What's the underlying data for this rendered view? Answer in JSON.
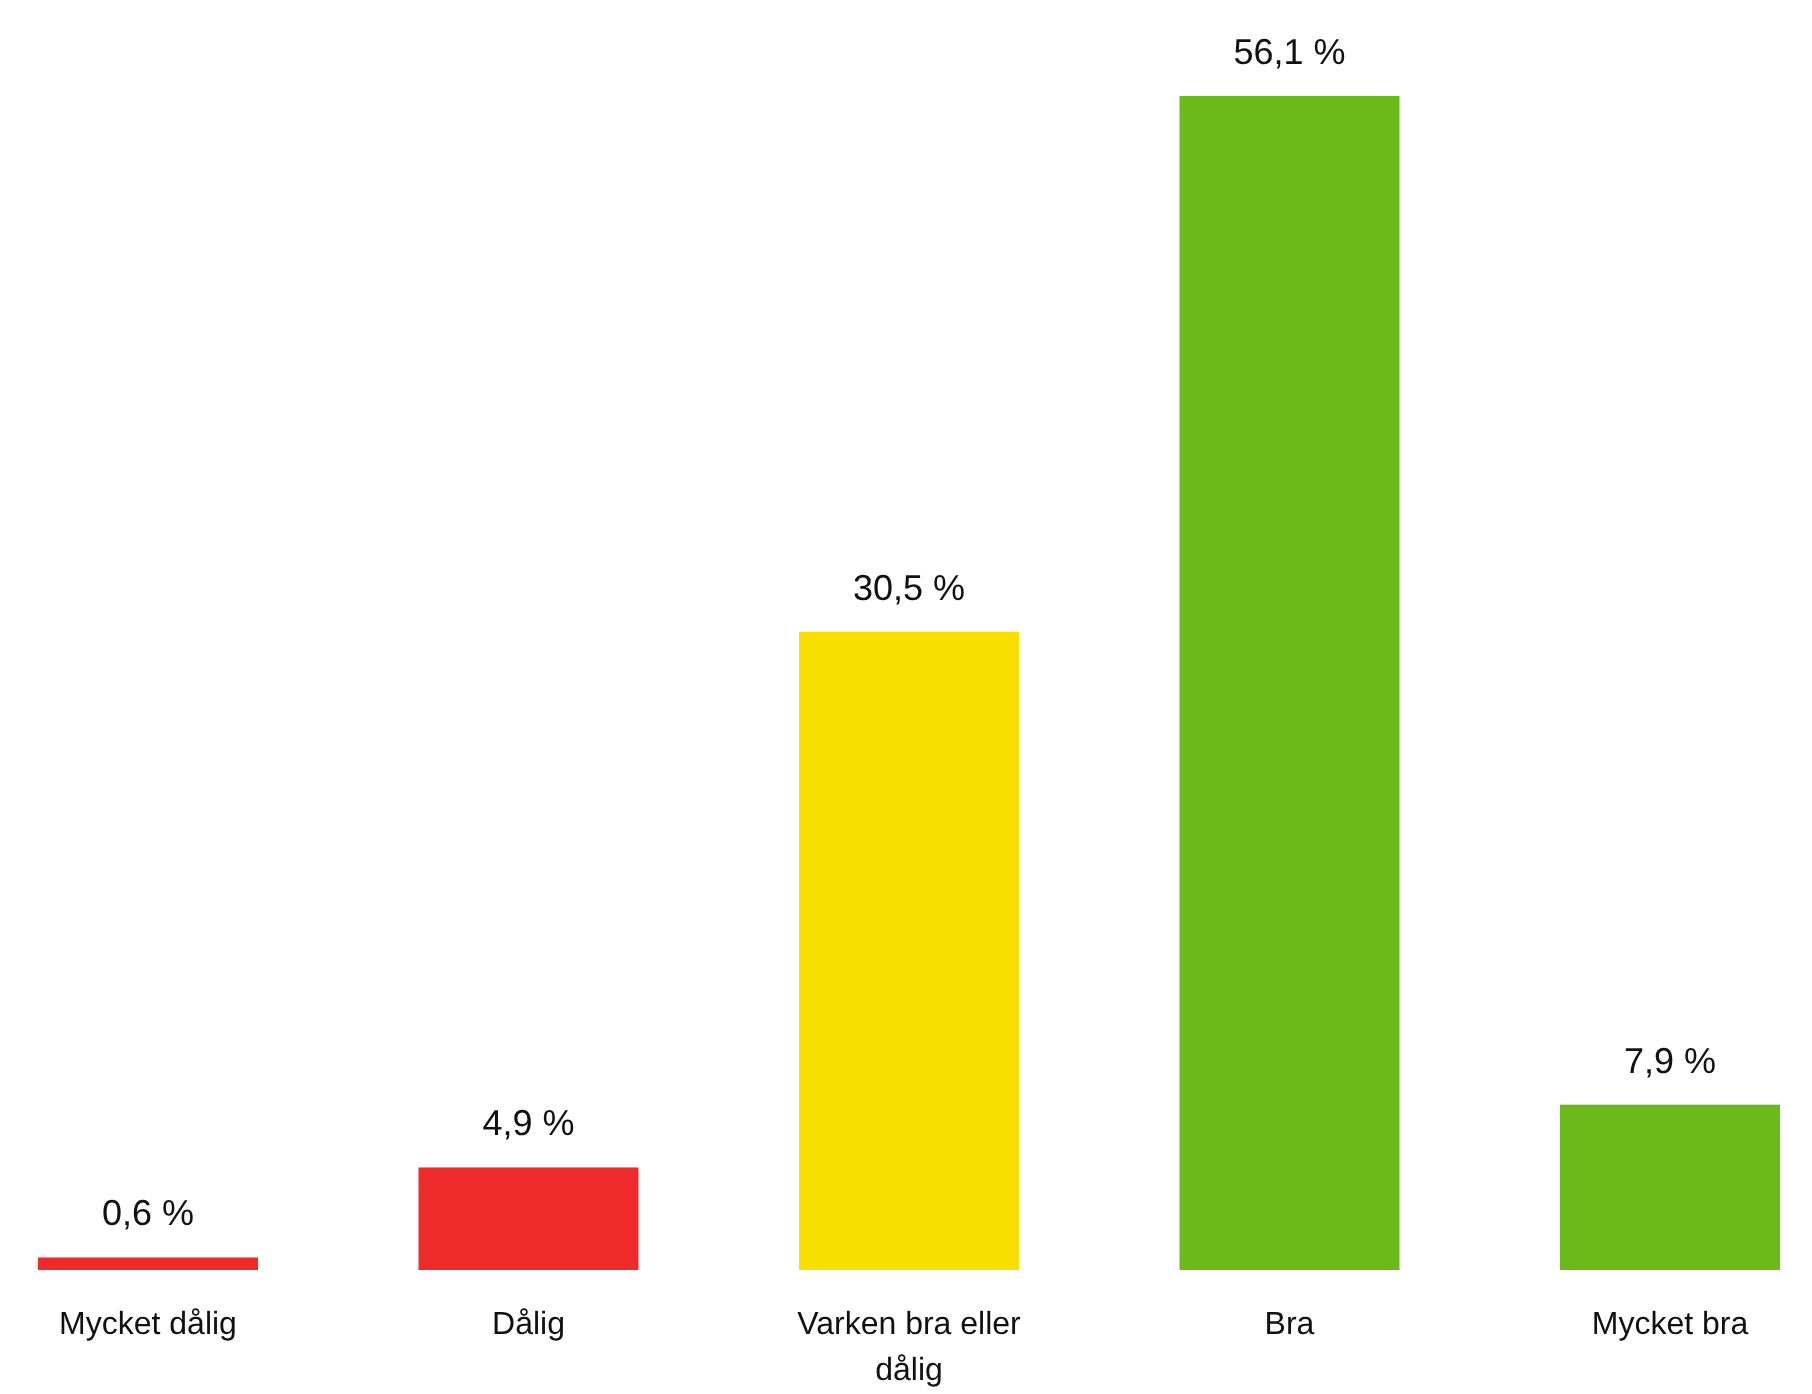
{
  "chart_data": {
    "type": "bar",
    "categories": [
      "Mycket dålig",
      "Dålig",
      "Varken bra eller dålig",
      "Bra",
      "Mycket bra"
    ],
    "values": [
      0.6,
      4.9,
      30.5,
      56.1,
      7.9
    ],
    "colors": [
      "#ee2a2a",
      "#ee2a2a",
      "#f7e000",
      "#6cb91a",
      "#6cb91a"
    ],
    "value_labels": [
      "0,6 %",
      "4,9 %",
      "30,5 %",
      "56,1 %",
      "7,9 %"
    ]
  }
}
